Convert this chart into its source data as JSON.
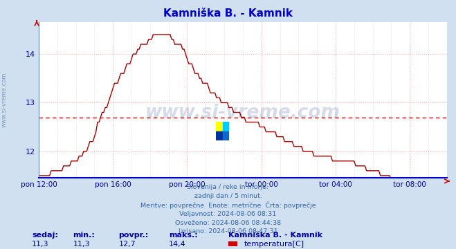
{
  "title": "Kamniška B. - Kamnik",
  "title_color": "#0000cc",
  "bg_color": "#d0e0f0",
  "plot_bg_color": "#ffffff",
  "line_color": "#aa0000",
  "avg_line_color": "#cc0000",
  "avg_value": 12.7,
  "y_min": 11.45,
  "y_max": 14.65,
  "y_ticks": [
    12,
    13,
    14
  ],
  "x_labels": [
    "pon 12:00",
    "pon 16:00",
    "pon 20:00",
    "tor 00:00",
    "tor 04:00",
    "tor 08:00"
  ],
  "x_tick_positions": [
    0,
    48,
    96,
    144,
    192,
    240
  ],
  "total_points": 265,
  "watermark": "www.si-vreme.com",
  "watermark_color": "#1a3a8a",
  "watermark_alpha": 0.18,
  "info_lines": [
    "Slovenija / reke in morje.",
    "zadnji dan / 5 minut.",
    "Meritve: povprečne  Enote: metrične  Črta: povprečje",
    "Veljavnost: 2024-08-06 08:31",
    "Osveženo: 2024-08-06 08:44:38",
    "Izrisano: 2024-08-06 08:47:31"
  ],
  "info_color": "#3366aa",
  "legend_label": "Kamniška B. - Kamnik",
  "legend_sub_label": "temperatura[C]",
  "legend_color": "#cc0000",
  "bottom_labels": [
    "sedaj:",
    "min.:",
    "povpr.:",
    "maks.:"
  ],
  "bottom_values": [
    "11,3",
    "11,3",
    "12,7",
    "14,4"
  ],
  "bottom_color": "#0000aa",
  "sidebar_text": "www.si-vreme.com",
  "sidebar_color": "#5577aa",
  "grid_color": "#ffaaaa",
  "grid_vcolor": "#ccccdd"
}
